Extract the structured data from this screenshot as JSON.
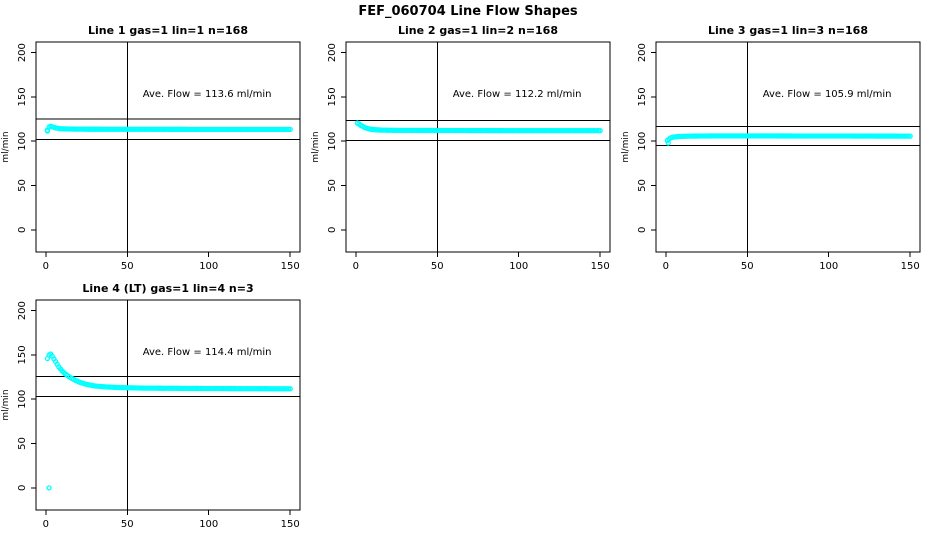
{
  "page_title": "FEF_060704  Line Flow Shapes",
  "colors": {
    "background": "#ffffff",
    "axis": "#000000",
    "point": "#00ffff"
  },
  "chart_data": [
    {
      "type": "scatter",
      "title": "Line 1 gas=1 lin=1 n=168",
      "ave_flow": 113.6,
      "ave_flow_label": "Ave. Flow =  113.6  ml/min",
      "xlabel": "",
      "ylabel": "ml/min",
      "xlim": [
        -6,
        156
      ],
      "ylim": [
        -25,
        212
      ],
      "xticks": [
        0,
        50,
        100,
        150
      ],
      "yticks": [
        0,
        50,
        100,
        150,
        200
      ],
      "grid": false,
      "vline_x": 50,
      "hlines": [
        125.0,
        102.2
      ],
      "annotation_pos": {
        "x": 99,
        "y": 150
      },
      "marker": {
        "shape": "circle-open",
        "radius": 2,
        "color": "#00ffff"
      },
      "band_keypoints": [
        [
          1,
          112.5
        ],
        [
          2,
          116
        ],
        [
          3,
          117
        ],
        [
          4,
          116.3
        ],
        [
          6,
          115
        ],
        [
          9,
          114.2
        ],
        [
          14,
          113.8
        ],
        [
          25,
          113.6
        ],
        [
          60,
          113.5
        ],
        [
          100,
          113.4
        ],
        [
          150,
          113.4
        ]
      ],
      "extra_points": [
        [
          1,
          111.5
        ]
      ]
    },
    {
      "type": "scatter",
      "title": "Line 2 gas=1 lin=2 n=168",
      "ave_flow": 112.2,
      "ave_flow_label": "Ave. Flow =  112.2  ml/min",
      "xlabel": "",
      "ylabel": "ml/min",
      "xlim": [
        -6,
        156
      ],
      "ylim": [
        -25,
        212
      ],
      "xticks": [
        0,
        50,
        100,
        150
      ],
      "yticks": [
        0,
        50,
        100,
        150,
        200
      ],
      "grid": false,
      "vline_x": 50,
      "hlines": [
        123.4,
        101.0
      ],
      "annotation_pos": {
        "x": 99,
        "y": 150
      },
      "marker": {
        "shape": "circle-open",
        "radius": 2,
        "color": "#00ffff"
      },
      "band_keypoints": [
        [
          1,
          120.5
        ],
        [
          2,
          119.5
        ],
        [
          3,
          118
        ],
        [
          5,
          116
        ],
        [
          7,
          114.5
        ],
        [
          10,
          113.3
        ],
        [
          15,
          112.6
        ],
        [
          25,
          112.3
        ],
        [
          60,
          112.1
        ],
        [
          100,
          112.0
        ],
        [
          150,
          112.0
        ]
      ],
      "extra_points": []
    },
    {
      "type": "scatter",
      "title": "Line 3 gas=1 lin=3 n=168",
      "ave_flow": 105.9,
      "ave_flow_label": "Ave. Flow =  105.9  ml/min",
      "xlabel": "",
      "ylabel": "ml/min",
      "xlim": [
        -6,
        156
      ],
      "ylim": [
        -25,
        212
      ],
      "xticks": [
        0,
        50,
        100,
        150
      ],
      "yticks": [
        0,
        50,
        100,
        150,
        200
      ],
      "grid": false,
      "vline_x": 50,
      "hlines": [
        116.5,
        95.3
      ],
      "annotation_pos": {
        "x": 99,
        "y": 150
      },
      "marker": {
        "shape": "circle-open",
        "radius": 2,
        "color": "#00ffff"
      },
      "band_keypoints": [
        [
          1,
          101
        ],
        [
          2,
          102.5
        ],
        [
          3,
          103.8
        ],
        [
          5,
          104.8
        ],
        [
          8,
          105.4
        ],
        [
          15,
          105.8
        ],
        [
          30,
          106
        ],
        [
          60,
          106
        ],
        [
          100,
          105.9
        ],
        [
          150,
          105.8
        ]
      ],
      "extra_points": [
        [
          1.5,
          98
        ]
      ]
    },
    {
      "type": "scatter",
      "title": "Line 4 (LT) gas=1 lin=4 n=3",
      "ave_flow": 114.4,
      "ave_flow_label": "Ave. Flow =  114.4  ml/min",
      "xlabel": "",
      "ylabel": "ml/min",
      "xlim": [
        -6,
        156
      ],
      "ylim": [
        -25,
        212
      ],
      "xticks": [
        0,
        50,
        100,
        150
      ],
      "yticks": [
        0,
        50,
        100,
        150,
        200
      ],
      "grid": false,
      "vline_x": 50,
      "hlines": [
        125.8,
        103.0
      ],
      "annotation_pos": {
        "x": 99,
        "y": 150
      },
      "marker": {
        "shape": "circle-open",
        "radius": 2,
        "color": "#00ffff"
      },
      "band_keypoints": [
        [
          1,
          146
        ],
        [
          2,
          150
        ],
        [
          3,
          151
        ],
        [
          4,
          148.5
        ],
        [
          5,
          145.5
        ],
        [
          6,
          142.5
        ],
        [
          7,
          139.5
        ],
        [
          8,
          136.5
        ],
        [
          10,
          132
        ],
        [
          12,
          128.5
        ],
        [
          15,
          124.5
        ],
        [
          18,
          121.5
        ],
        [
          21,
          119
        ],
        [
          25,
          116.8
        ],
        [
          30,
          115
        ],
        [
          36,
          114
        ],
        [
          45,
          113.2
        ],
        [
          60,
          112.6
        ],
        [
          90,
          112.2
        ],
        [
          120,
          112
        ],
        [
          150,
          111.8
        ]
      ],
      "extra_points": [
        [
          2,
          0
        ]
      ]
    }
  ]
}
